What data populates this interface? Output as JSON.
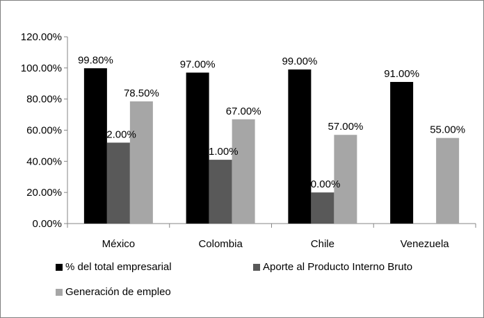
{
  "chart_data": {
    "type": "bar",
    "categories": [
      "México",
      "Colombia",
      "Chile",
      "Venezuela"
    ],
    "series": [
      {
        "name": "% del total empresarial",
        "color": "#000000",
        "values": [
          99.8,
          97.0,
          99.0,
          91.0
        ],
        "labels": [
          "99.80%",
          "97.00%",
          "99.00%",
          "91.00%"
        ]
      },
      {
        "name": "Aporte al Producto Interno Bruto",
        "color": "#595959",
        "values": [
          52.0,
          41.0,
          20.0,
          null
        ],
        "labels": [
          "52.00%",
          "41.00%",
          "20.00%",
          null
        ]
      },
      {
        "name": "Generación de empleo",
        "color": "#a6a6a6",
        "values": [
          78.5,
          67.0,
          57.0,
          55.0
        ],
        "labels": [
          "78.50%",
          "67.00%",
          "57.00%",
          "55.00%"
        ]
      }
    ],
    "yticks": [
      "0.00%",
      "20.00%",
      "40.00%",
      "60.00%",
      "80.00%",
      "100.00%",
      "120.00%"
    ],
    "ylim": [
      0,
      120
    ],
    "grid": false,
    "legend_position": "bottom"
  }
}
